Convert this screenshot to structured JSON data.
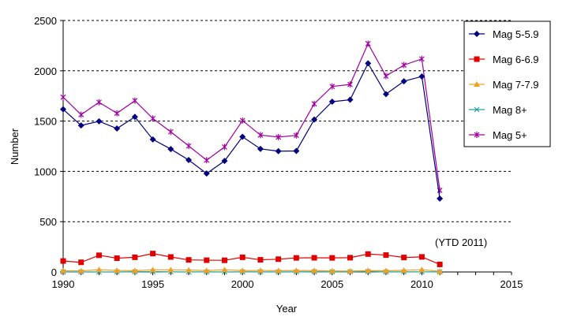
{
  "chart_data": {
    "type": "line",
    "xlabel": "Year",
    "ylabel": "Number",
    "xlim": [
      1990,
      2015
    ],
    "ylim": [
      0,
      2500
    ],
    "x_ticks": [
      1990,
      1995,
      2000,
      2005,
      2010,
      2015
    ],
    "y_ticks": [
      0,
      500,
      1000,
      1500,
      2000,
      2500
    ],
    "grid": "horizontal dashed",
    "legend_position": "top-right",
    "annotation": "(YTD 2011)",
    "x": [
      1990,
      1991,
      1992,
      1993,
      1994,
      1995,
      1996,
      1997,
      1998,
      1999,
      2000,
      2001,
      2002,
      2003,
      2004,
      2005,
      2006,
      2007,
      2008,
      2009,
      2010,
      2011
    ],
    "series": [
      {
        "name": "Mag 5-5.9",
        "color": "#000080",
        "marker": "diamond",
        "values": [
          1617,
          1457,
          1498,
          1426,
          1542,
          1318,
          1222,
          1113,
          979,
          1104,
          1344,
          1224,
          1201,
          1203,
          1515,
          1693,
          1712,
          2074,
          1768,
          1896,
          1944,
          730
        ]
      },
      {
        "name": "Mag 6-6.9",
        "color": "#e00000",
        "marker": "square",
        "values": [
          109,
          96,
          166,
          137,
          146,
          183,
          149,
          120,
          117,
          116,
          146,
          121,
          127,
          140,
          141,
          140,
          142,
          178,
          168,
          144,
          150,
          75
        ]
      },
      {
        "name": "Mag 7-7.9",
        "color": "#f0a020",
        "marker": "triangle",
        "values": [
          12,
          11,
          23,
          15,
          13,
          22,
          21,
          20,
          14,
          23,
          14,
          15,
          13,
          14,
          14,
          10,
          9,
          14,
          12,
          16,
          23,
          6
        ]
      },
      {
        "name": "Mag 8+",
        "color": "#20a0a0",
        "marker": "x",
        "values": [
          0,
          0,
          0,
          0,
          2,
          3,
          1,
          0,
          1,
          0,
          1,
          1,
          0,
          1,
          2,
          1,
          2,
          4,
          0,
          1,
          1,
          1
        ]
      },
      {
        "name": "Mag 5+",
        "color": "#a000a0",
        "marker": "star",
        "values": [
          1738,
          1564,
          1687,
          1578,
          1703,
          1526,
          1393,
          1253,
          1111,
          1243,
          1505,
          1361,
          1341,
          1358,
          1672,
          1844,
          1864,
          2270,
          1948,
          2057,
          2118,
          812
        ]
      }
    ]
  }
}
